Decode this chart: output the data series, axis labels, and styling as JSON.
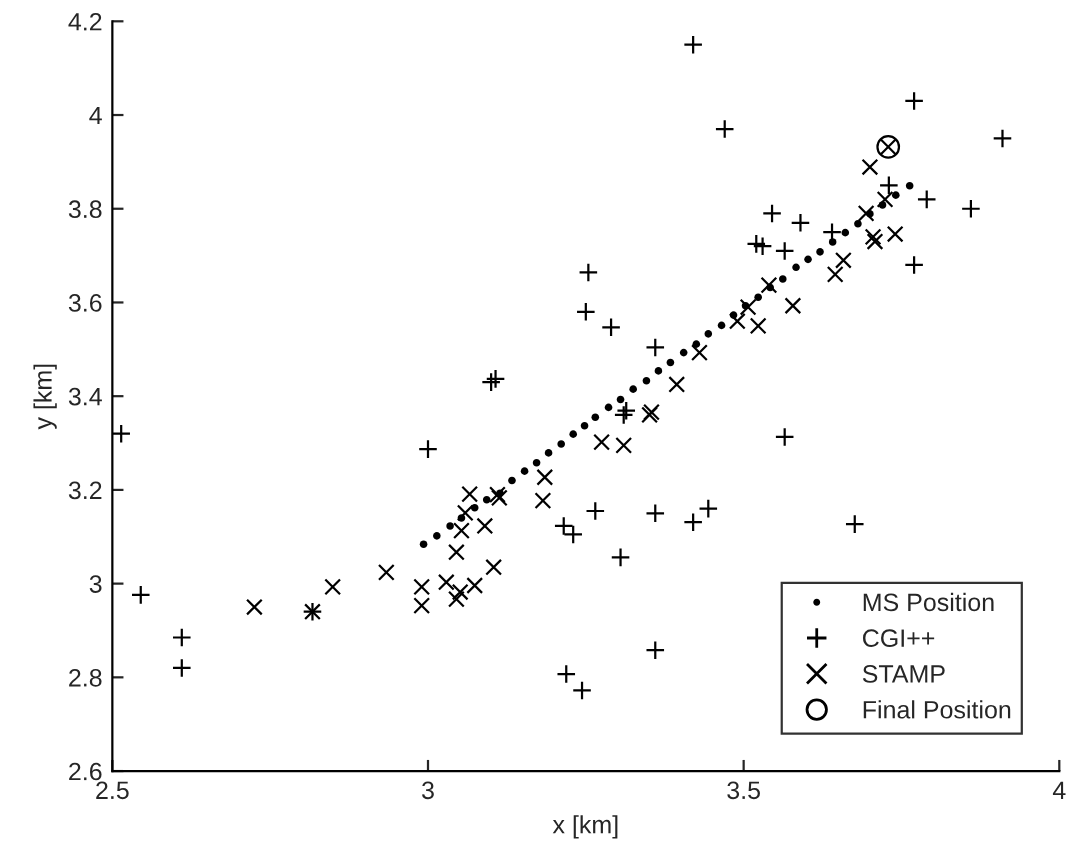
{
  "chart_data": {
    "type": "scatter",
    "xlabel": "x [km]",
    "ylabel": "y [km]",
    "xlim": [
      2.5,
      4
    ],
    "ylim": [
      2.6,
      4.2
    ],
    "xticks": [
      2.5,
      3,
      3.5,
      4
    ],
    "yticks": [
      2.6,
      2.8,
      3,
      3.2,
      3.4,
      3.6,
      3.8,
      4,
      4.2
    ],
    "grid": false,
    "legend": "bottom right",
    "series": [
      {
        "name": "MS Position",
        "color": "#000000",
        "marker": "point",
        "x": [
          2.993,
          3.014,
          3.035,
          3.053,
          3.074,
          3.093,
          3.114,
          3.133,
          3.153,
          3.172,
          3.191,
          3.211,
          3.23,
          3.248,
          3.265,
          3.286,
          3.305,
          3.325,
          3.346,
          3.365,
          3.384,
          3.405,
          3.425,
          3.444,
          3.465,
          3.484,
          3.503,
          3.523,
          3.542,
          3.562,
          3.583,
          3.602,
          3.621,
          3.641,
          3.661,
          3.681,
          3.7,
          3.72,
          3.741,
          3.763
        ],
        "values": [
          3.084,
          3.102,
          3.123,
          3.14,
          3.162,
          3.179,
          3.193,
          3.22,
          3.24,
          3.258,
          3.279,
          3.298,
          3.319,
          3.337,
          3.355,
          3.376,
          3.393,
          3.415,
          3.433,
          3.454,
          3.472,
          3.493,
          3.511,
          3.533,
          3.551,
          3.573,
          3.593,
          3.611,
          3.632,
          3.65,
          3.675,
          3.692,
          3.708,
          3.729,
          3.749,
          3.768,
          3.789,
          3.808,
          3.829,
          3.849
        ]
      },
      {
        "name": "CGI++",
        "color": "#000000",
        "marker": "plus",
        "x": [
          3.107,
          3.1,
          3.42,
          3.47,
          3.77,
          3.91,
          3.73,
          3.79,
          3.86,
          3.545,
          3.59,
          3.64,
          3.52,
          3.53,
          3.565,
          3.77,
          3.254,
          3.25,
          3.29,
          3.36,
          3.31,
          2.514,
          3.0,
          2.545,
          2.61,
          2.61,
          3.219,
          3.215,
          3.23,
          3.314,
          3.565,
          3.265,
          3.36,
          3.42,
          3.444,
          3.676,
          3.305,
          3.36,
          3.244,
          2.817
        ],
        "values": [
          3.437,
          3.43,
          4.15,
          3.97,
          4.03,
          3.95,
          3.85,
          3.82,
          3.8,
          3.79,
          3.77,
          3.75,
          3.725,
          3.72,
          3.71,
          3.68,
          3.664,
          3.58,
          3.547,
          3.504,
          3.36,
          3.32,
          3.287,
          2.976,
          2.885,
          2.82,
          2.807,
          3.123,
          3.105,
          3.369,
          3.313,
          3.155,
          3.15,
          3.131,
          3.16,
          3.127,
          3.056,
          2.858,
          2.772,
          2.94
        ]
      },
      {
        "name": "STAMP",
        "color": "#000000",
        "marker": "cross",
        "x": [
          3.7,
          3.724,
          3.694,
          3.705,
          3.708,
          3.74,
          3.658,
          3.645,
          3.54,
          3.507,
          3.49,
          3.523,
          3.578,
          3.43,
          3.394,
          3.351,
          3.066,
          3.11,
          3.113,
          3.185,
          3.059,
          3.053,
          3.09,
          3.182,
          3.045,
          3.104,
          2.934,
          2.849,
          2.725,
          2.99,
          2.99,
          3.029,
          3.051,
          3.045,
          3.074,
          2.817,
          3.354,
          3.275,
          3.31,
          3.729
        ],
        "values": [
          3.889,
          3.82,
          3.79,
          3.74,
          3.73,
          3.746,
          3.69,
          3.66,
          3.637,
          3.59,
          3.56,
          3.55,
          3.593,
          3.493,
          3.425,
          3.36,
          3.191,
          3.19,
          3.183,
          3.227,
          3.151,
          3.113,
          3.123,
          3.177,
          3.067,
          3.035,
          3.024,
          2.993,
          2.95,
          2.993,
          2.953,
          3.003,
          2.982,
          2.967,
          2.996,
          2.94,
          3.366,
          3.302,
          3.295,
          3.932
        ]
      },
      {
        "name": "Final Position",
        "color": "#000000",
        "marker": "circle",
        "x": [
          3.729
        ],
        "values": [
          3.932
        ]
      }
    ]
  }
}
